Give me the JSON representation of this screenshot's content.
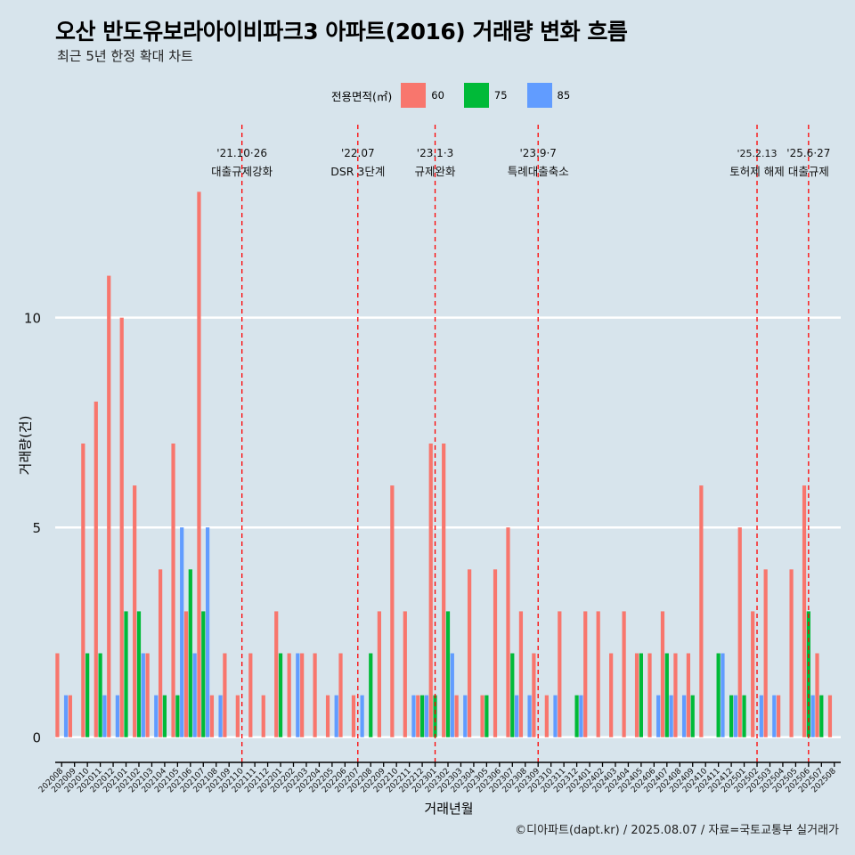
{
  "title": "오산 반도유보라아이비파크3 아파트(2016) 거래량 변화 흐름",
  "subtitle": "최근 5년 한정 확대 차트",
  "caption": "©디아파트(dapt.kr) / 2025.08.07 / 자료=국토교통부 실거래가",
  "legend": {
    "title": "전용면적(㎡)",
    "items": [
      {
        "label": "60",
        "color": "#f8766d"
      },
      {
        "label": "75",
        "color": "#00ba38"
      },
      {
        "label": "85",
        "color": "#619cff"
      }
    ]
  },
  "chart_data": {
    "type": "bar",
    "xlabel": "거래년월",
    "ylabel": "거래량(건)",
    "ylim": [
      -0.6,
      14.6
    ],
    "yticks": [
      0,
      5,
      10
    ],
    "grid": true,
    "legend_position": "top",
    "categories": [
      "202008",
      "202009",
      "202010",
      "202011",
      "202012",
      "202101",
      "202102",
      "202103",
      "202104",
      "202105",
      "202106",
      "202107",
      "202108",
      "202109",
      "202110",
      "202111",
      "202112",
      "202201",
      "202202",
      "202203",
      "202204",
      "202205",
      "202206",
      "202207",
      "202208",
      "202209",
      "202210",
      "202211",
      "202212",
      "202301",
      "202302",
      "202303",
      "202304",
      "202305",
      "202306",
      "202307",
      "202308",
      "202309",
      "202310",
      "202311",
      "202312",
      "202401",
      "202402",
      "202403",
      "202404",
      "202405",
      "202406",
      "202407",
      "202408",
      "202409",
      "202410",
      "202411",
      "202412",
      "202501",
      "202502",
      "202503",
      "202504",
      "202505",
      "202506",
      "202507",
      "202508"
    ],
    "series": [
      {
        "name": "60",
        "color": "#f8766d",
        "values": [
          2,
          1,
          7,
          8,
          11,
          10,
          6,
          2,
          4,
          7,
          3,
          13,
          1,
          2,
          1,
          2,
          1,
          3,
          2,
          2,
          2,
          1,
          2,
          1,
          0,
          3,
          6,
          3,
          1,
          7,
          7,
          1,
          4,
          1,
          4,
          5,
          3,
          2,
          1,
          3,
          0,
          3,
          3,
          2,
          3,
          2,
          2,
          3,
          2,
          2,
          6,
          0,
          0,
          5,
          3,
          4,
          1,
          4,
          6,
          2,
          1
        ]
      },
      {
        "name": "75",
        "color": "#00ba38",
        "values": [
          0,
          0,
          2,
          2,
          0,
          3,
          3,
          0,
          1,
          1,
          4,
          3,
          0,
          0,
          0,
          0,
          0,
          2,
          0,
          0,
          0,
          0,
          0,
          0,
          2,
          0,
          0,
          0,
          1,
          1,
          3,
          0,
          0,
          1,
          0,
          2,
          0,
          0,
          0,
          0,
          1,
          0,
          0,
          0,
          0,
          2,
          0,
          2,
          0,
          1,
          0,
          2,
          1,
          1,
          0,
          0,
          0,
          0,
          3,
          1,
          0
        ]
      },
      {
        "name": "85",
        "color": "#619cff",
        "values": [
          1,
          0,
          0,
          1,
          1,
          0,
          2,
          1,
          0,
          5,
          2,
          5,
          1,
          0,
          0,
          0,
          0,
          0,
          2,
          0,
          0,
          1,
          0,
          1,
          0,
          0,
          0,
          1,
          1,
          0,
          2,
          1,
          0,
          0,
          0,
          1,
          1,
          0,
          1,
          0,
          1,
          0,
          0,
          0,
          0,
          0,
          1,
          1,
          1,
          0,
          0,
          2,
          1,
          0,
          1,
          1,
          0,
          0,
          1,
          0,
          0
        ]
      }
    ],
    "events": [
      {
        "x": "202110",
        "date": "'21.10·26",
        "label": "대출규제강화"
      },
      {
        "x": "202207",
        "date": "'22.07",
        "label": "DSR 3단계"
      },
      {
        "x": "202301",
        "date": "'23.1·3",
        "label": "규제완화"
      },
      {
        "x": "202309",
        "date": "'23.9·7",
        "label": "특례대출축소"
      },
      {
        "x": "202502",
        "date": "'25.2.13",
        "label": "토허제 해제"
      },
      {
        "x": "202506",
        "date": "'25.6·27",
        "label": "대출규제"
      }
    ]
  }
}
